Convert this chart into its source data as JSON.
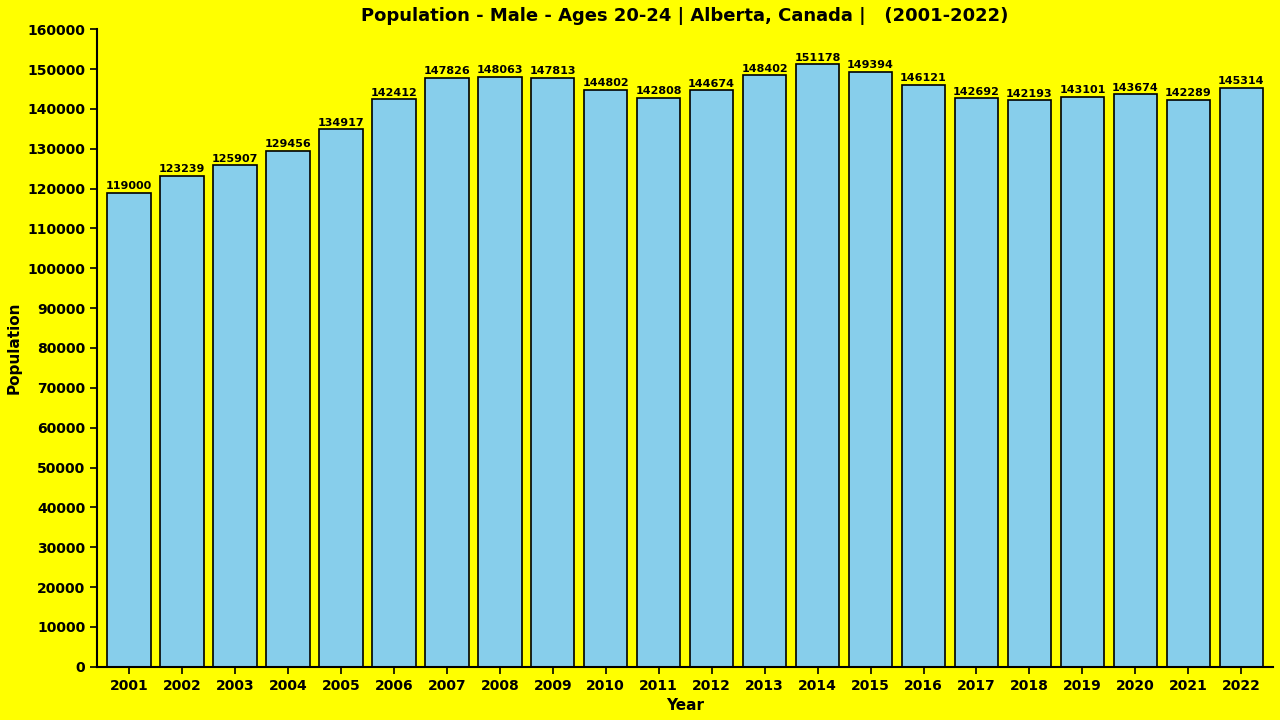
{
  "years": [
    2001,
    2002,
    2003,
    2004,
    2005,
    2006,
    2007,
    2008,
    2009,
    2010,
    2011,
    2012,
    2013,
    2014,
    2015,
    2016,
    2017,
    2018,
    2019,
    2020,
    2021,
    2022
  ],
  "values": [
    119000,
    123239,
    125907,
    129456,
    134917,
    142412,
    147826,
    148063,
    147813,
    144802,
    142808,
    144674,
    148402,
    151178,
    149394,
    146121,
    142692,
    142193,
    143101,
    143674,
    142289,
    145314
  ],
  "bar_color": "#87CEEB",
  "bar_edge_color": "#000000",
  "background_color": "#FFFF00",
  "title": "Population - Male - Ages 20-24 | Alberta, Canada |   (2001-2022)",
  "title_color": "#000000",
  "xlabel": "Year",
  "ylabel": "Population",
  "ylim": [
    0,
    160000
  ],
  "ytick_step": 10000,
  "title_fontsize": 13,
  "label_fontsize": 11,
  "tick_fontsize": 10,
  "annotation_fontsize": 8.0,
  "bar_width": 0.82
}
